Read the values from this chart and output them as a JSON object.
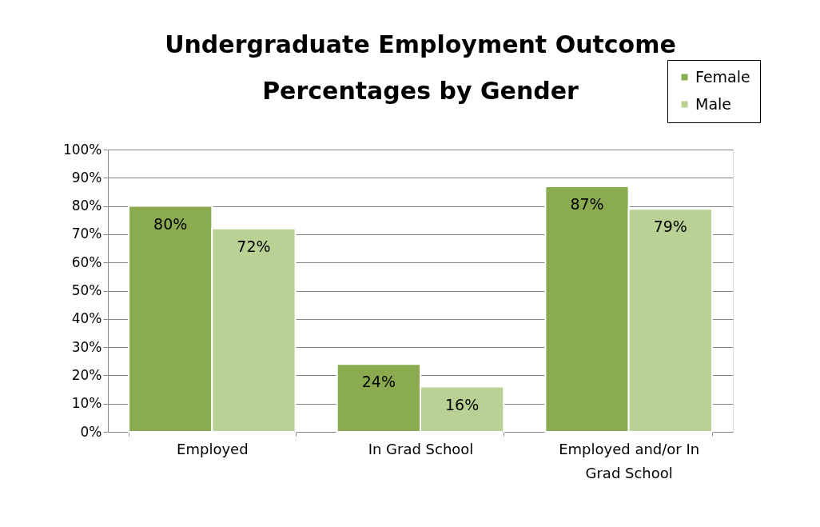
{
  "chart_data": {
    "type": "bar",
    "title": "Undergraduate Employment Outcome Percentages by Gender",
    "categories": [
      "Employed",
      "In Grad School",
      "Employed and/or In Grad School"
    ],
    "series": [
      {
        "name": "Female",
        "color": "#8aab4f",
        "values": [
          80,
          24,
          87
        ],
        "value_labels": [
          "80%",
          "24%",
          "87%"
        ]
      },
      {
        "name": "Male",
        "color": "#bad196",
        "values": [
          72,
          16,
          79
        ],
        "value_labels": [
          "72%",
          "16%",
          "79%"
        ]
      }
    ],
    "ylim": [
      0,
      100
    ],
    "yticks": [
      {
        "value": 0,
        "label": "0%"
      },
      {
        "value": 10,
        "label": "10%"
      },
      {
        "value": 20,
        "label": "20%"
      },
      {
        "value": 30,
        "label": "30%"
      },
      {
        "value": 40,
        "label": "40%"
      },
      {
        "value": 50,
        "label": "50%"
      },
      {
        "value": 60,
        "label": "60%"
      },
      {
        "value": 70,
        "label": "70%"
      },
      {
        "value": 80,
        "label": "80%"
      },
      {
        "value": 90,
        "label": "90%"
      },
      {
        "value": 100,
        "label": "100%"
      }
    ],
    "grid": "y",
    "legend": "top right"
  }
}
